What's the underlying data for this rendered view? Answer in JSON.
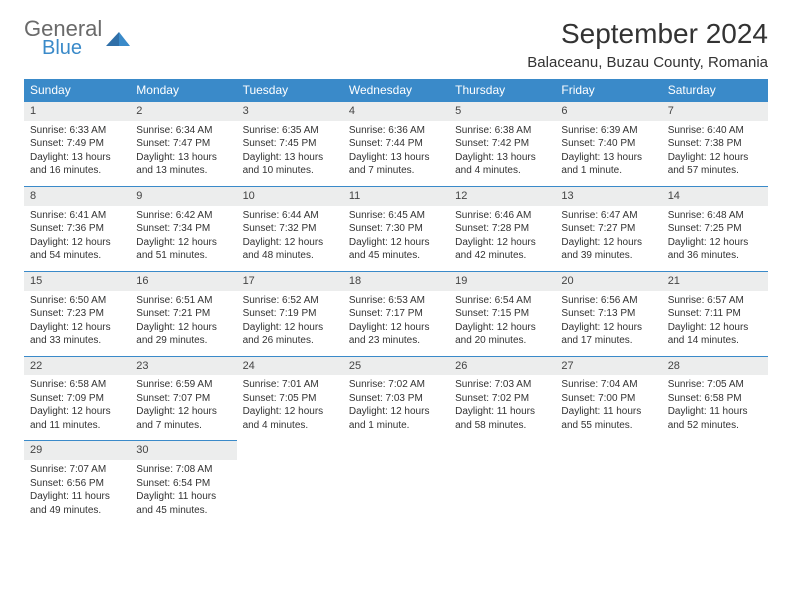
{
  "brand": {
    "general": "General",
    "blue": "Blue"
  },
  "header": {
    "month_title": "September 2024",
    "location": "Balaceanu, Buzau County, Romania"
  },
  "colors": {
    "header_bg": "#3a8ac9",
    "header_text": "#ffffff",
    "daynum_bg": "#eceded",
    "daynum_border": "#3a8ac9",
    "body_text": "#333333",
    "logo_gray": "#6a6a6a",
    "logo_blue": "#3a8ac9"
  },
  "weekdays": [
    "Sunday",
    "Monday",
    "Tuesday",
    "Wednesday",
    "Thursday",
    "Friday",
    "Saturday"
  ],
  "weeks": [
    [
      {
        "n": "1",
        "sr": "Sunrise: 6:33 AM",
        "ss": "Sunset: 7:49 PM",
        "d1": "Daylight: 13 hours",
        "d2": "and 16 minutes."
      },
      {
        "n": "2",
        "sr": "Sunrise: 6:34 AM",
        "ss": "Sunset: 7:47 PM",
        "d1": "Daylight: 13 hours",
        "d2": "and 13 minutes."
      },
      {
        "n": "3",
        "sr": "Sunrise: 6:35 AM",
        "ss": "Sunset: 7:45 PM",
        "d1": "Daylight: 13 hours",
        "d2": "and 10 minutes."
      },
      {
        "n": "4",
        "sr": "Sunrise: 6:36 AM",
        "ss": "Sunset: 7:44 PM",
        "d1": "Daylight: 13 hours",
        "d2": "and 7 minutes."
      },
      {
        "n": "5",
        "sr": "Sunrise: 6:38 AM",
        "ss": "Sunset: 7:42 PM",
        "d1": "Daylight: 13 hours",
        "d2": "and 4 minutes."
      },
      {
        "n": "6",
        "sr": "Sunrise: 6:39 AM",
        "ss": "Sunset: 7:40 PM",
        "d1": "Daylight: 13 hours",
        "d2": "and 1 minute."
      },
      {
        "n": "7",
        "sr": "Sunrise: 6:40 AM",
        "ss": "Sunset: 7:38 PM",
        "d1": "Daylight: 12 hours",
        "d2": "and 57 minutes."
      }
    ],
    [
      {
        "n": "8",
        "sr": "Sunrise: 6:41 AM",
        "ss": "Sunset: 7:36 PM",
        "d1": "Daylight: 12 hours",
        "d2": "and 54 minutes."
      },
      {
        "n": "9",
        "sr": "Sunrise: 6:42 AM",
        "ss": "Sunset: 7:34 PM",
        "d1": "Daylight: 12 hours",
        "d2": "and 51 minutes."
      },
      {
        "n": "10",
        "sr": "Sunrise: 6:44 AM",
        "ss": "Sunset: 7:32 PM",
        "d1": "Daylight: 12 hours",
        "d2": "and 48 minutes."
      },
      {
        "n": "11",
        "sr": "Sunrise: 6:45 AM",
        "ss": "Sunset: 7:30 PM",
        "d1": "Daylight: 12 hours",
        "d2": "and 45 minutes."
      },
      {
        "n": "12",
        "sr": "Sunrise: 6:46 AM",
        "ss": "Sunset: 7:28 PM",
        "d1": "Daylight: 12 hours",
        "d2": "and 42 minutes."
      },
      {
        "n": "13",
        "sr": "Sunrise: 6:47 AM",
        "ss": "Sunset: 7:27 PM",
        "d1": "Daylight: 12 hours",
        "d2": "and 39 minutes."
      },
      {
        "n": "14",
        "sr": "Sunrise: 6:48 AM",
        "ss": "Sunset: 7:25 PM",
        "d1": "Daylight: 12 hours",
        "d2": "and 36 minutes."
      }
    ],
    [
      {
        "n": "15",
        "sr": "Sunrise: 6:50 AM",
        "ss": "Sunset: 7:23 PM",
        "d1": "Daylight: 12 hours",
        "d2": "and 33 minutes."
      },
      {
        "n": "16",
        "sr": "Sunrise: 6:51 AM",
        "ss": "Sunset: 7:21 PM",
        "d1": "Daylight: 12 hours",
        "d2": "and 29 minutes."
      },
      {
        "n": "17",
        "sr": "Sunrise: 6:52 AM",
        "ss": "Sunset: 7:19 PM",
        "d1": "Daylight: 12 hours",
        "d2": "and 26 minutes."
      },
      {
        "n": "18",
        "sr": "Sunrise: 6:53 AM",
        "ss": "Sunset: 7:17 PM",
        "d1": "Daylight: 12 hours",
        "d2": "and 23 minutes."
      },
      {
        "n": "19",
        "sr": "Sunrise: 6:54 AM",
        "ss": "Sunset: 7:15 PM",
        "d1": "Daylight: 12 hours",
        "d2": "and 20 minutes."
      },
      {
        "n": "20",
        "sr": "Sunrise: 6:56 AM",
        "ss": "Sunset: 7:13 PM",
        "d1": "Daylight: 12 hours",
        "d2": "and 17 minutes."
      },
      {
        "n": "21",
        "sr": "Sunrise: 6:57 AM",
        "ss": "Sunset: 7:11 PM",
        "d1": "Daylight: 12 hours",
        "d2": "and 14 minutes."
      }
    ],
    [
      {
        "n": "22",
        "sr": "Sunrise: 6:58 AM",
        "ss": "Sunset: 7:09 PM",
        "d1": "Daylight: 12 hours",
        "d2": "and 11 minutes."
      },
      {
        "n": "23",
        "sr": "Sunrise: 6:59 AM",
        "ss": "Sunset: 7:07 PM",
        "d1": "Daylight: 12 hours",
        "d2": "and 7 minutes."
      },
      {
        "n": "24",
        "sr": "Sunrise: 7:01 AM",
        "ss": "Sunset: 7:05 PM",
        "d1": "Daylight: 12 hours",
        "d2": "and 4 minutes."
      },
      {
        "n": "25",
        "sr": "Sunrise: 7:02 AM",
        "ss": "Sunset: 7:03 PM",
        "d1": "Daylight: 12 hours",
        "d2": "and 1 minute."
      },
      {
        "n": "26",
        "sr": "Sunrise: 7:03 AM",
        "ss": "Sunset: 7:02 PM",
        "d1": "Daylight: 11 hours",
        "d2": "and 58 minutes."
      },
      {
        "n": "27",
        "sr": "Sunrise: 7:04 AM",
        "ss": "Sunset: 7:00 PM",
        "d1": "Daylight: 11 hours",
        "d2": "and 55 minutes."
      },
      {
        "n": "28",
        "sr": "Sunrise: 7:05 AM",
        "ss": "Sunset: 6:58 PM",
        "d1": "Daylight: 11 hours",
        "d2": "and 52 minutes."
      }
    ],
    [
      {
        "n": "29",
        "sr": "Sunrise: 7:07 AM",
        "ss": "Sunset: 6:56 PM",
        "d1": "Daylight: 11 hours",
        "d2": "and 49 minutes."
      },
      {
        "n": "30",
        "sr": "Sunrise: 7:08 AM",
        "ss": "Sunset: 6:54 PM",
        "d1": "Daylight: 11 hours",
        "d2": "and 45 minutes."
      },
      null,
      null,
      null,
      null,
      null
    ]
  ]
}
